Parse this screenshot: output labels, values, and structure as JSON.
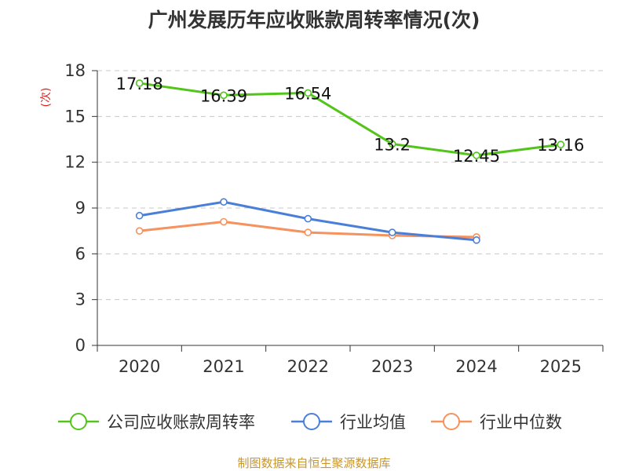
{
  "chart_data": {
    "type": "line",
    "title": "广州发展历年应收账款周转率情况(次)",
    "ylabel": "(次)",
    "xlabel": "",
    "categories": [
      "2020",
      "2021",
      "2022",
      "2023",
      "2024",
      "2025"
    ],
    "ylim": [
      0,
      18
    ],
    "yticks": [
      0,
      3,
      6,
      9,
      12,
      15,
      18
    ],
    "grid": true,
    "legend_position": "bottom",
    "series": [
      {
        "name": "公司应收账款周转率",
        "color": "#52c41a",
        "values": [
          17.18,
          16.39,
          16.54,
          13.2,
          12.45,
          13.16
        ],
        "labels": [
          "17.18",
          "16.39",
          "16.54",
          "13.2",
          "12.45",
          "13.16"
        ]
      },
      {
        "name": "行业均值",
        "color": "#4a7fd9",
        "values": [
          8.5,
          9.4,
          8.3,
          7.4,
          6.9,
          null
        ]
      },
      {
        "name": "行业中位数",
        "color": "#f5925e",
        "values": [
          7.5,
          8.1,
          7.4,
          7.2,
          7.1,
          null
        ]
      }
    ],
    "source": "制图数据来自恒生聚源数据库"
  }
}
